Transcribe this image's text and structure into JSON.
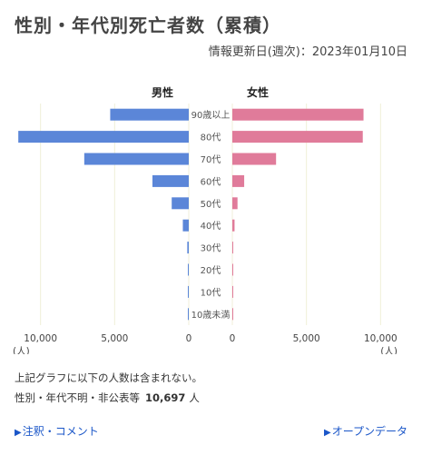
{
  "title": "性別・年代別死亡者数（累積）",
  "updated": "情報更新日(週次)：2023年01月10日",
  "colors": {
    "male": "#5b86d8",
    "female": "#e07b9a",
    "grid": "#f0efd8",
    "axis": "#bbbbbb"
  },
  "chart_data": {
    "type": "bar",
    "orientation": "horizontal-pyramid",
    "categories": [
      "90歳以上",
      "80代",
      "70代",
      "60代",
      "50代",
      "40代",
      "30代",
      "20代",
      "10代",
      "10歳未満"
    ],
    "series": [
      {
        "name": "男性",
        "values": [
          5300,
          11500,
          7050,
          2450,
          1150,
          400,
          100,
          40,
          10,
          10
        ]
      },
      {
        "name": "女性",
        "values": [
          8850,
          8800,
          2950,
          800,
          350,
          150,
          60,
          20,
          10,
          10
        ]
      }
    ],
    "xlim": [
      0,
      12000
    ],
    "ticks": [
      10000,
      5000,
      0
    ],
    "tick_labels": [
      "10,000",
      "5,000",
      "0"
    ],
    "unit_label": "(人)",
    "grid": true
  },
  "notes": {
    "line1": "上記グラフに以下の人数は含まれない。",
    "line2_prefix": "性別・年代不明・非公表等",
    "count": "10,697",
    "unit": "人"
  },
  "links": {
    "notes": "注釈・コメント",
    "opendata": "オープンデータ",
    "icon": "▶"
  }
}
